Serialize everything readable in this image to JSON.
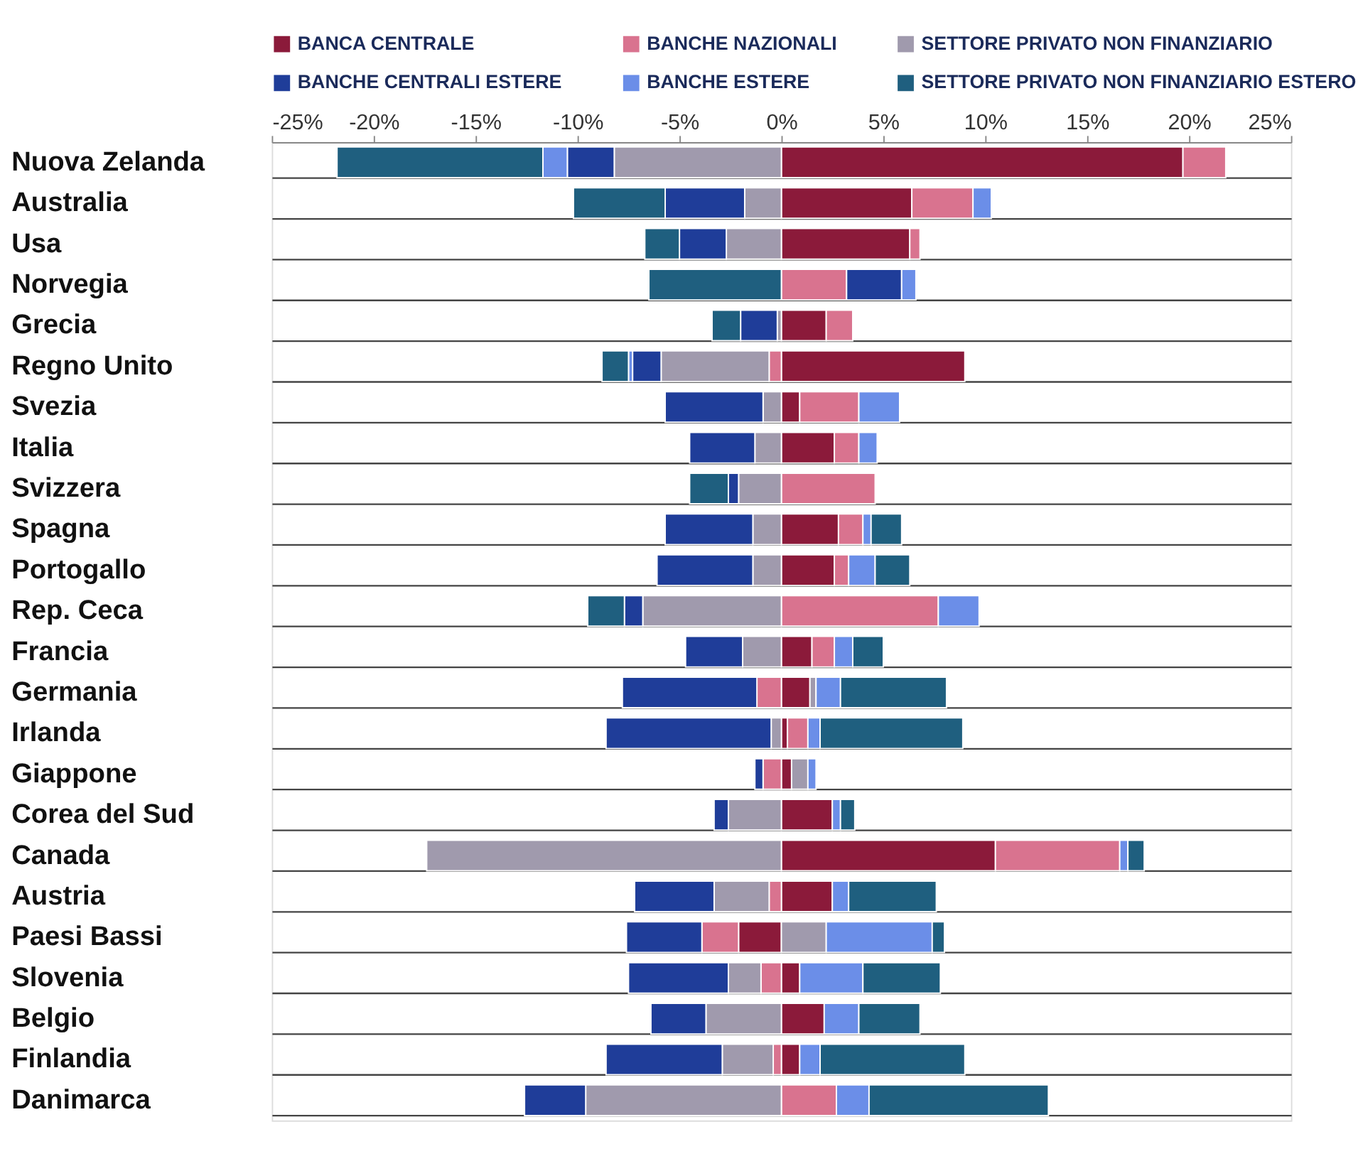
{
  "chart_data": {
    "type": "bar",
    "orientation": "horizontal",
    "stacked": true,
    "categories": [
      "Nuova Zelanda",
      "Australia",
      "Usa",
      "Norvegia",
      "Grecia",
      "Regno Unito",
      "Svezia",
      "Italia",
      "Svizzera",
      "Spagna",
      "Portogallo",
      "Rep. Ceca",
      "Francia",
      "Germania",
      "Irlanda",
      "Giappone",
      "Corea del Sud",
      "Canada",
      "Austria",
      "Paesi Bassi",
      "Slovenia",
      "Belgio",
      "Finlandia",
      "Danimarca"
    ],
    "series": [
      {
        "name": "BANCA CENTRALE",
        "color": "#8b1a3a",
        "values": [
          19.7,
          6.4,
          6.3,
          null,
          2.2,
          9.0,
          0.9,
          2.6,
          null,
          2.8,
          2.6,
          null,
          1.5,
          1.4,
          0.3,
          0.5,
          2.5,
          10.5,
          2.5,
          -2.1,
          0.9,
          2.1,
          0.9,
          null
        ]
      },
      {
        "name": "BANCHE NAZIONALI",
        "color": "#d9738f",
        "values": [
          2.1,
          3.0,
          0.5,
          3.2,
          1.3,
          -0.6,
          2.9,
          1.2,
          4.6,
          1.2,
          0.7,
          7.7,
          1.1,
          -1.2,
          1.0,
          -0.9,
          null,
          6.1,
          -0.6,
          -1.8,
          -1.0,
          null,
          -0.4,
          2.7
        ]
      },
      {
        "name": "SETTORE PRIVATO NON FINANZIARIO",
        "color": "#a09aad",
        "values": [
          -8.2,
          -1.8,
          -2.7,
          null,
          -0.2,
          -5.3,
          -0.9,
          -1.3,
          -2.1,
          -1.4,
          -1.4,
          -6.8,
          -1.9,
          0.3,
          -0.5,
          0.8,
          -2.6,
          -17.4,
          -2.7,
          2.2,
          -1.6,
          -3.7,
          -2.5,
          -9.6
        ]
      },
      {
        "name": "BANCHE CENTRALI ESTERE",
        "color": "#1f3d99",
        "values": [
          -2.3,
          -3.9,
          -2.3,
          2.7,
          -1.8,
          -1.4,
          -4.8,
          -3.2,
          -0.5,
          -4.3,
          -4.7,
          -0.9,
          -2.8,
          -6.6,
          -8.1,
          -0.4,
          -0.7,
          null,
          -3.9,
          -3.7,
          -4.9,
          -2.7,
          -5.7,
          -3.0
        ]
      },
      {
        "name": "BANCHE ESTERE",
        "color": "#6b8ee8",
        "values": [
          -1.2,
          0.9,
          null,
          0.7,
          null,
          -0.2,
          2.0,
          0.9,
          null,
          0.4,
          1.3,
          2.0,
          0.9,
          1.2,
          0.6,
          0.4,
          0.4,
          0.4,
          0.8,
          5.2,
          3.1,
          1.7,
          1.0,
          1.6
        ]
      },
      {
        "name": "SETTORE PRIVATO NON FINANZIARIO ESTERO",
        "color": "#1f5f7f",
        "values": [
          -10.1,
          -4.5,
          -1.7,
          -6.5,
          -1.4,
          -1.3,
          null,
          null,
          -1.9,
          1.5,
          1.7,
          -1.8,
          1.5,
          5.2,
          7.0,
          null,
          0.7,
          0.8,
          4.3,
          0.6,
          3.8,
          3.0,
          7.1,
          8.8
        ]
      }
    ],
    "xlim": [
      -25,
      25
    ],
    "xticks": [
      {
        "value": -25,
        "label": "-25%"
      },
      {
        "value": -20,
        "label": "-20%"
      },
      {
        "value": -15,
        "label": "-15%"
      },
      {
        "value": -10,
        "label": "-10%"
      },
      {
        "value": -5,
        "label": "-5%"
      },
      {
        "value": 0,
        "label": "0%"
      },
      {
        "value": 5,
        "label": "5%"
      },
      {
        "value": 10,
        "label": "10%"
      },
      {
        "value": 15,
        "label": "15%"
      },
      {
        "value": 20,
        "label": "20%"
      },
      {
        "value": 25,
        "label": "25%"
      }
    ],
    "grid": "y",
    "legend": "top"
  }
}
